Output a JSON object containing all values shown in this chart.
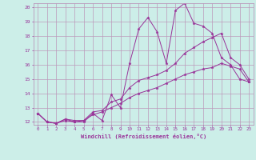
{
  "title": "",
  "xlabel": "Windchill (Refroidissement éolien,°C)",
  "ylabel": "",
  "bg_color": "#cceee8",
  "grid_color": "#bb99bb",
  "line_color": "#993399",
  "xlim": [
    -0.5,
    23.5
  ],
  "ylim": [
    11.8,
    20.3
  ],
  "xticks": [
    0,
    1,
    2,
    3,
    4,
    5,
    6,
    7,
    8,
    9,
    10,
    11,
    12,
    13,
    14,
    15,
    16,
    17,
    18,
    19,
    20,
    21,
    22,
    23
  ],
  "yticks": [
    12,
    13,
    14,
    15,
    16,
    17,
    18,
    19,
    20
  ],
  "series": [
    [
      12.6,
      12.0,
      11.9,
      12.2,
      12.0,
      12.0,
      12.6,
      12.1,
      13.9,
      13.0,
      16.1,
      18.5,
      19.3,
      18.3,
      16.1,
      19.8,
      20.3,
      18.9,
      18.7,
      18.2,
      16.5,
      16.0,
      15.0,
      14.8
    ],
    [
      12.6,
      12.0,
      11.9,
      12.2,
      12.1,
      12.1,
      12.7,
      12.8,
      13.4,
      13.6,
      14.4,
      14.9,
      15.1,
      15.3,
      15.6,
      16.1,
      16.8,
      17.2,
      17.6,
      17.9,
      18.2,
      16.5,
      16.0,
      15.0
    ],
    [
      12.6,
      12.0,
      11.9,
      12.1,
      12.0,
      12.1,
      12.5,
      12.7,
      13.0,
      13.3,
      13.7,
      14.0,
      14.2,
      14.4,
      14.7,
      15.0,
      15.3,
      15.5,
      15.7,
      15.8,
      16.1,
      15.9,
      15.7,
      14.8
    ]
  ]
}
